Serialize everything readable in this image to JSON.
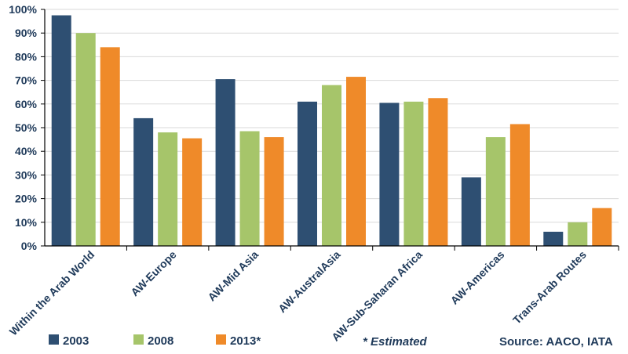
{
  "chart_data": {
    "type": "bar",
    "categories": [
      "Within the Arab World",
      "AW-Europe",
      "AW-Mid Asia",
      "AW-AustralAsia",
      "AW-Sub-Saharan Africa",
      "AW-Americas",
      "Trans-Arab Routes"
    ],
    "series": [
      {
        "name": "2003",
        "color": "#2e4f72",
        "values": [
          97.5,
          54,
          70.5,
          61,
          60.5,
          29,
          6
        ]
      },
      {
        "name": "2008",
        "color": "#a6c56a",
        "values": [
          90,
          48,
          48.5,
          68,
          61,
          46,
          10
        ]
      },
      {
        "name": "2013*",
        "color": "#ef8a29",
        "values": [
          84,
          45.5,
          46,
          71.5,
          62.5,
          51.5,
          16
        ]
      }
    ],
    "yticks": [
      "0%",
      "10%",
      "20%",
      "30%",
      "40%",
      "50%",
      "60%",
      "70%",
      "80%",
      "90%",
      "100%"
    ],
    "ylim": [
      0,
      100
    ],
    "grid": true,
    "legend_position": "bottom-left"
  },
  "footnote": "* Estimated",
  "source": "Source:  AACO, IATA"
}
